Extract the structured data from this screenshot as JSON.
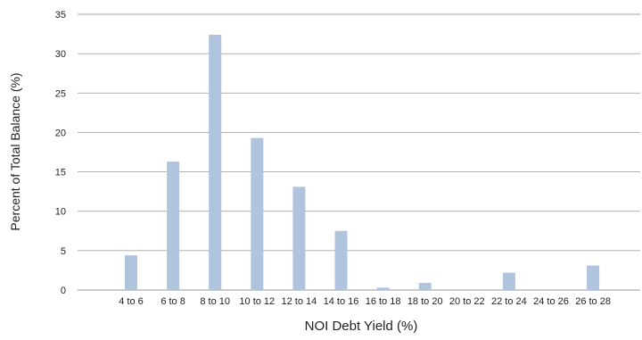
{
  "chart_data": {
    "type": "bar",
    "title": "",
    "xlabel": "NOI Debt Yield (%)",
    "ylabel": "Percent of Total Balance (%)",
    "categories": [
      "4 to 6",
      "6 to 8",
      "8 to 10",
      "10 to 12",
      "12 to 14",
      "14 to 16",
      "16 to 18",
      "18 to 20",
      "20 to 22",
      "22 to 24",
      "24 to 26",
      "26 to 28"
    ],
    "values": [
      4.4,
      16.3,
      32.4,
      19.3,
      13.1,
      7.5,
      0.3,
      0.9,
      0,
      2.2,
      0,
      3.1
    ],
    "ylim": [
      0,
      35
    ],
    "yticks": [
      0,
      5,
      10,
      15,
      20,
      25,
      30,
      35
    ],
    "grid": true,
    "legend": "none",
    "colors": {
      "bar": "#b0c4de",
      "grid": "#a6a6a6",
      "axis": "#999999",
      "text": "#222222"
    }
  }
}
